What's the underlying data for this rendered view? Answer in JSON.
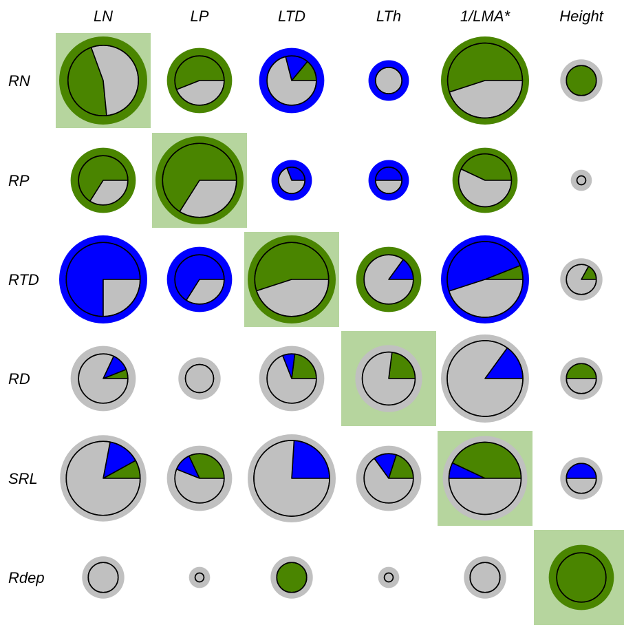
{
  "chart_data": {
    "type": "pie",
    "columns": [
      "LN",
      "LP",
      "LTD",
      "LTh",
      "1/LMA*",
      "Height"
    ],
    "rows": [
      "RN",
      "RP",
      "RTD",
      "RD",
      "SRL",
      "Rdep"
    ],
    "colors": {
      "green": "#4a8500",
      "blue": "#0000ff",
      "gray": "#c0c0c0",
      "diagonal_highlight": "#b6d59e"
    },
    "cells": [
      [
        {
          "ring": "green",
          "ring_size": 1.0,
          "pie_size": 0.8,
          "slices": [
            {
              "color": "green",
              "fraction": 0.46
            },
            {
              "color": "gray",
              "fraction": 0.54
            }
          ],
          "start_angle": 110,
          "clockwise": false
        },
        {
          "ring": "green",
          "ring_size": 0.74,
          "pie_size": 0.56,
          "slices": [
            {
              "color": "green",
              "fraction": 0.56
            },
            {
              "color": "gray",
              "fraction": 0.44
            }
          ],
          "start_angle": 0,
          "clockwise": false
        },
        {
          "ring": "blue",
          "ring_size": 0.74,
          "pie_size": 0.56,
          "slices": [
            {
              "color": "green",
              "fraction": 0.14
            },
            {
              "color": "blue",
              "fraction": 0.15
            },
            {
              "color": "gray",
              "fraction": 0.71
            }
          ],
          "start_angle": 0,
          "clockwise": false
        },
        {
          "ring": "blue",
          "ring_size": 0.46,
          "pie_size": 0.3,
          "slices": [
            {
              "color": "gray",
              "fraction": 1.0
            }
          ],
          "start_angle": 0,
          "clockwise": false
        },
        {
          "ring": "green",
          "ring_size": 1.0,
          "pie_size": 0.85,
          "slices": [
            {
              "color": "green",
              "fraction": 0.55
            },
            {
              "color": "gray",
              "fraction": 0.45
            }
          ],
          "start_angle": 0,
          "clockwise": false
        },
        {
          "ring": "gray",
          "ring_size": 0.48,
          "pie_size": 0.34,
          "slices": [
            {
              "color": "green",
              "fraction": 1.0
            }
          ],
          "start_angle": 0,
          "clockwise": false
        }
      ],
      [
        {
          "ring": "green",
          "ring_size": 0.74,
          "pie_size": 0.56,
          "slices": [
            {
              "color": "green",
              "fraction": 0.66
            },
            {
              "color": "gray",
              "fraction": 0.34
            }
          ],
          "start_angle": 0,
          "clockwise": false
        },
        {
          "ring": "green",
          "ring_size": 1.0,
          "pie_size": 0.84,
          "slices": [
            {
              "color": "green",
              "fraction": 0.66
            },
            {
              "color": "gray",
              "fraction": 0.34
            }
          ],
          "start_angle": 0,
          "clockwise": false
        },
        {
          "ring": "blue",
          "ring_size": 0.46,
          "pie_size": 0.3,
          "slices": [
            {
              "color": "blue",
              "fraction": 0.31
            },
            {
              "color": "gray",
              "fraction": 0.69
            }
          ],
          "start_angle": 0,
          "clockwise": false
        },
        {
          "ring": "blue",
          "ring_size": 0.46,
          "pie_size": 0.3,
          "slices": [
            {
              "color": "blue",
              "fraction": 0.5
            },
            {
              "color": "gray",
              "fraction": 0.5
            }
          ],
          "start_angle": 0,
          "clockwise": false
        },
        {
          "ring": "green",
          "ring_size": 0.74,
          "pie_size": 0.6,
          "slices": [
            {
              "color": "green",
              "fraction": 0.43
            },
            {
              "color": "gray",
              "fraction": 0.57
            }
          ],
          "start_angle": 0,
          "clockwise": false
        },
        {
          "ring": "gray",
          "ring_size": 0.24,
          "pie_size": 0.1,
          "slices": [
            {
              "color": "gray",
              "fraction": 1.0
            }
          ],
          "start_angle": 0,
          "clockwise": false
        }
      ],
      [
        {
          "ring": "blue",
          "ring_size": 1.0,
          "pie_size": 0.84,
          "slices": [
            {
              "color": "blue",
              "fraction": 0.75
            },
            {
              "color": "gray",
              "fraction": 0.25
            }
          ],
          "start_angle": 0,
          "clockwise": false
        },
        {
          "ring": "blue",
          "ring_size": 0.74,
          "pie_size": 0.56,
          "slices": [
            {
              "color": "blue",
              "fraction": 0.66
            },
            {
              "color": "gray",
              "fraction": 0.34
            }
          ],
          "start_angle": 0,
          "clockwise": false
        },
        {
          "ring": "green",
          "ring_size": 1.0,
          "pie_size": 0.84,
          "slices": [
            {
              "color": "green",
              "fraction": 0.55
            },
            {
              "color": "gray",
              "fraction": 0.45
            }
          ],
          "start_angle": 0,
          "clockwise": false
        },
        {
          "ring": "green",
          "ring_size": 0.74,
          "pie_size": 0.56,
          "slices": [
            {
              "color": "blue",
              "fraction": 0.15
            },
            {
              "color": "gray",
              "fraction": 0.85
            }
          ],
          "start_angle": 0,
          "clockwise": false
        },
        {
          "ring": "blue",
          "ring_size": 1.0,
          "pie_size": 0.86,
          "slices": [
            {
              "color": "green",
              "fraction": 0.06
            },
            {
              "color": "blue",
              "fraction": 0.49
            },
            {
              "color": "gray",
              "fraction": 0.45
            }
          ],
          "start_angle": 0,
          "clockwise": false
        },
        {
          "ring": "gray",
          "ring_size": 0.48,
          "pie_size": 0.34,
          "slices": [
            {
              "color": "green",
              "fraction": 0.17
            },
            {
              "color": "gray",
              "fraction": 0.83
            }
          ],
          "start_angle": 0,
          "clockwise": false
        }
      ],
      [
        {
          "ring": "gray",
          "ring_size": 0.74,
          "pie_size": 0.56,
          "slices": [
            {
              "color": "green",
              "fraction": 0.06
            },
            {
              "color": "blue",
              "fraction": 0.12
            },
            {
              "color": "gray",
              "fraction": 0.82
            }
          ],
          "start_angle": 0,
          "clockwise": false
        },
        {
          "ring": "gray",
          "ring_size": 0.48,
          "pie_size": 0.32,
          "slices": [
            {
              "color": "gray",
              "fraction": 1.0
            }
          ],
          "start_angle": 0,
          "clockwise": false
        },
        {
          "ring": "gray",
          "ring_size": 0.74,
          "pie_size": 0.56,
          "slices": [
            {
              "color": "green",
              "fraction": 0.23
            },
            {
              "color": "blue",
              "fraction": 0.08
            },
            {
              "color": "gray",
              "fraction": 0.69
            }
          ],
          "start_angle": 0,
          "clockwise": false
        },
        {
          "ring": "gray",
          "ring_size": 0.76,
          "pie_size": 0.6,
          "slices": [
            {
              "color": "green",
              "fraction": 0.23
            },
            {
              "color": "gray",
              "fraction": 0.77
            }
          ],
          "start_angle": 0,
          "clockwise": false
        },
        {
          "ring": "gray",
          "ring_size": 1.0,
          "pie_size": 0.86,
          "slices": [
            {
              "color": "blue",
              "fraction": 0.15
            },
            {
              "color": "gray",
              "fraction": 0.85
            }
          ],
          "start_angle": 0,
          "clockwise": false
        },
        {
          "ring": "gray",
          "ring_size": 0.48,
          "pie_size": 0.34,
          "slices": [
            {
              "color": "green",
              "fraction": 0.5
            },
            {
              "color": "gray",
              "fraction": 0.5
            }
          ],
          "start_angle": 0,
          "clockwise": false
        }
      ],
      [
        {
          "ring": "gray",
          "ring_size": 0.98,
          "pie_size": 0.84,
          "slices": [
            {
              "color": "green",
              "fraction": 0.08
            },
            {
              "color": "blue",
              "fraction": 0.14
            },
            {
              "color": "gray",
              "fraction": 0.78
            }
          ],
          "start_angle": 0,
          "clockwise": false
        },
        {
          "ring": "gray",
          "ring_size": 0.74,
          "pie_size": 0.56,
          "slices": [
            {
              "color": "green",
              "fraction": 0.32
            },
            {
              "color": "blue",
              "fraction": 0.12
            },
            {
              "color": "gray",
              "fraction": 0.56
            }
          ],
          "start_angle": 0,
          "clockwise": false
        },
        {
          "ring": "gray",
          "ring_size": 1.0,
          "pie_size": 0.86,
          "slices": [
            {
              "color": "blue",
              "fraction": 0.24
            },
            {
              "color": "gray",
              "fraction": 0.76
            }
          ],
          "start_angle": 0,
          "clockwise": false
        },
        {
          "ring": "gray",
          "ring_size": 0.74,
          "pie_size": 0.56,
          "slices": [
            {
              "color": "green",
              "fraction": 0.2
            },
            {
              "color": "blue",
              "fraction": 0.15
            },
            {
              "color": "gray",
              "fraction": 0.65
            }
          ],
          "start_angle": 0,
          "clockwise": false
        },
        {
          "ring": "gray",
          "ring_size": 0.96,
          "pie_size": 0.82,
          "slices": [
            {
              "color": "green",
              "fraction": 0.43
            },
            {
              "color": "blue",
              "fraction": 0.07
            },
            {
              "color": "gray",
              "fraction": 0.5
            }
          ],
          "start_angle": 0,
          "clockwise": false
        },
        {
          "ring": "gray",
          "ring_size": 0.48,
          "pie_size": 0.34,
          "slices": [
            {
              "color": "blue",
              "fraction": 0.5
            },
            {
              "color": "gray",
              "fraction": 0.5
            }
          ],
          "start_angle": 0,
          "clockwise": false
        }
      ],
      [
        {
          "ring": "gray",
          "ring_size": 0.48,
          "pie_size": 0.34,
          "slices": [
            {
              "color": "gray",
              "fraction": 1.0
            }
          ],
          "start_angle": 0,
          "clockwise": false
        },
        {
          "ring": "gray",
          "ring_size": 0.24,
          "pie_size": 0.1,
          "slices": [
            {
              "color": "gray",
              "fraction": 1.0
            }
          ],
          "start_angle": 0,
          "clockwise": false
        },
        {
          "ring": "gray",
          "ring_size": 0.48,
          "pie_size": 0.34,
          "slices": [
            {
              "color": "green",
              "fraction": 1.0
            }
          ],
          "start_angle": 0,
          "clockwise": false
        },
        {
          "ring": "gray",
          "ring_size": 0.24,
          "pie_size": 0.1,
          "slices": [
            {
              "color": "gray",
              "fraction": 1.0
            }
          ],
          "start_angle": 0,
          "clockwise": false
        },
        {
          "ring": "gray",
          "ring_size": 0.48,
          "pie_size": 0.34,
          "slices": [
            {
              "color": "gray",
              "fraction": 1.0
            }
          ],
          "start_angle": 0,
          "clockwise": false
        },
        {
          "ring": "green",
          "ring_size": 0.74,
          "pie_size": 0.56,
          "slices": [
            {
              "color": "green",
              "fraction": 1.0
            }
          ],
          "start_angle": 0,
          "clockwise": false
        }
      ]
    ]
  }
}
